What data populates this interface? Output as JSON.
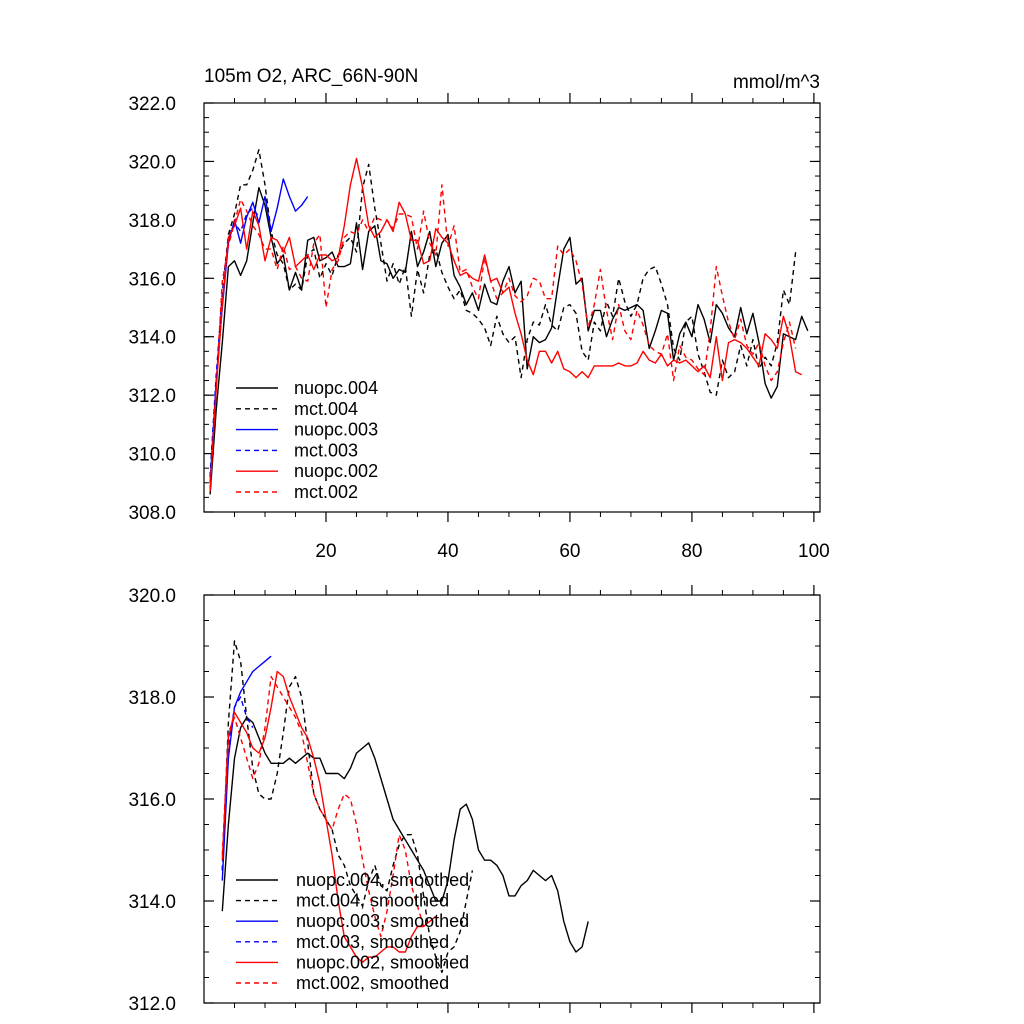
{
  "chart_data": [
    {
      "type": "line",
      "title_left": "105m O2, ARC_66N-90N",
      "title_right": "mmol/m^3",
      "xlabel": "",
      "ylabel": "",
      "xlim": [
        0,
        101
      ],
      "ylim": [
        308,
        322
      ],
      "yticks": [
        308,
        310,
        312,
        314,
        316,
        318,
        320,
        322
      ],
      "ytick_labels": [
        "308.0",
        "310.0",
        "312.0",
        "314.0",
        "316.0",
        "318.0",
        "320.0",
        "322.0"
      ],
      "xticks": [
        20,
        40,
        60,
        80,
        100
      ],
      "xtick_labels": [
        "20",
        "40",
        "60",
        "80",
        "100"
      ],
      "legend_position": "bottom-left",
      "series": [
        {
          "name": "nuopc.004",
          "color": "#000000",
          "dash": "solid",
          "x_start": 1,
          "values": [
            308.6,
            311.5,
            313.8,
            316.4,
            316.6,
            316.1,
            316.6,
            317.9,
            319.1,
            318.5,
            317.4,
            316.5,
            316.8,
            315.6,
            316.2,
            315.6,
            317.3,
            317.4,
            316.6,
            316.7,
            316.9,
            316.4,
            316.4,
            316.5,
            317.9,
            316.3,
            317.6,
            317.8,
            316.6,
            316.5,
            316.0,
            316.3,
            316.2,
            317.6,
            316.4,
            316.9,
            317.6,
            316.4,
            317.2,
            317.5,
            316.1,
            315.7,
            315.1,
            315.5,
            314.9,
            315.8,
            315.2,
            315.1,
            315.9,
            316.4,
            315.5,
            315.9,
            312.9,
            314.0,
            313.8,
            313.9,
            314.3,
            315.7,
            317.0,
            317.4,
            315.8,
            316.0,
            314.2,
            314.9,
            314.9,
            314.0,
            314.6,
            315.0,
            314.9,
            315.0,
            315.1,
            314.9,
            313.6,
            314.2,
            314.9,
            314.8,
            313.2,
            314.1,
            314.5,
            314.0,
            315.1,
            314.6,
            313.8,
            315.1,
            314.8,
            314.3,
            314.0,
            315.0,
            314.1,
            314.8,
            313.8,
            312.4,
            311.9,
            312.3,
            314.1,
            314.0,
            313.9,
            314.7,
            314.2
          ]
        },
        {
          "name": "mct.004",
          "color": "#000000",
          "dash": "dash",
          "x_start": 1,
          "values": [
            309.2,
            312.5,
            315.5,
            317.5,
            318.2,
            319.2,
            319.2,
            319.7,
            320.4,
            319.2,
            317.6,
            316.8,
            316.5,
            315.6,
            315.8,
            315.6,
            316.8,
            317.0,
            316.0,
            316.5,
            316.1,
            316.8,
            317.2,
            317.4,
            316.9,
            319.1,
            319.9,
            318.4,
            317.2,
            315.9,
            316.5,
            315.8,
            316.4,
            314.7,
            316.3,
            315.5,
            316.8,
            317.0,
            316.2,
            315.7,
            315.3,
            315.6,
            314.9,
            314.8,
            314.6,
            314.3,
            313.7,
            314.7,
            314.1,
            313.8,
            314.0,
            312.6,
            313.9,
            314.5,
            314.4,
            315.1,
            314.4,
            314.2,
            315.0,
            315.1,
            314.8,
            313.5,
            313.2,
            314.5,
            314.2,
            315.2,
            314.7,
            316.0,
            315.2,
            314.7,
            315.1,
            316.0,
            316.3,
            316.4,
            315.8,
            315.1,
            313.6,
            313.2,
            314.5,
            314.7,
            313.4,
            312.8,
            312.1,
            312.0,
            313.2,
            312.6,
            312.8,
            313.7,
            313.0,
            313.9,
            312.9,
            313.3,
            313.0,
            313.8,
            315.6,
            315.1,
            316.9
          ]
        },
        {
          "name": "nuopc.003",
          "color": "#0000ff",
          "dash": "solid",
          "x_start": 1,
          "values": [
            309.0,
            312.5,
            315.0,
            317.2,
            318.0,
            317.2,
            318.1,
            318.6,
            317.9,
            318.8,
            317.6,
            318.4,
            319.4,
            318.8,
            318.3,
            318.5,
            318.8
          ]
        },
        {
          "name": "mct.003",
          "color": "#0000ff",
          "dash": "dash",
          "x_start": 1,
          "values": [
            309.2,
            312.7,
            315.4,
            317.4,
            317.9,
            317.6,
            318.2,
            318.4,
            318.1
          ]
        },
        {
          "name": "nuopc.002",
          "color": "#ff0000",
          "dash": "solid",
          "x_start": 1,
          "values": [
            308.8,
            312.2,
            315.1,
            317.4,
            317.8,
            318.4,
            317.0,
            318.3,
            317.8,
            316.6,
            317.4,
            317.3,
            316.9,
            317.4,
            316.4,
            316.6,
            316.8,
            316.3,
            316.8,
            316.8,
            316.6,
            316.7,
            317.8,
            319.2,
            320.1,
            319.1,
            317.8,
            317.4,
            317.6,
            318.0,
            317.6,
            318.6,
            318.2,
            317.3,
            317.3,
            316.5,
            316.6,
            317.7,
            317.4,
            317.2,
            316.6,
            316.1,
            316.2,
            316.0,
            315.9,
            316.8,
            315.9,
            316.0,
            315.5,
            315.7,
            314.8,
            314.1,
            313.2,
            312.7,
            313.5,
            313.5,
            313.1,
            313.5,
            312.9,
            312.8,
            312.6,
            312.8,
            312.6,
            313.0,
            313.0,
            313.0,
            313.0,
            313.1,
            313.0,
            313.0,
            313.1,
            313.5,
            313.2,
            313.1,
            313.4,
            313.0,
            313.2,
            313.1,
            313.2,
            313.0,
            312.8,
            313.0,
            312.6,
            314.0,
            312.5,
            313.8,
            313.9,
            313.8,
            313.6,
            313.3,
            313.0,
            314.1,
            313.9,
            313.6,
            314.7,
            314.0,
            312.8,
            312.7
          ]
        },
        {
          "name": "mct.002",
          "color": "#ff0000",
          "dash": "dash",
          "x_start": 1,
          "values": [
            308.7,
            312.3,
            315.9,
            317.1,
            317.9,
            318.7,
            318.3,
            317.8,
            317.5,
            317.0,
            317.0,
            316.3,
            317.1,
            316.3,
            316.4,
            316.0,
            315.9,
            317.2,
            317.5,
            315.0,
            316.3,
            316.6,
            317.4,
            317.6,
            317.5,
            318.0,
            317.6,
            318.1,
            318.0,
            318.0,
            317.7,
            318.2,
            318.2,
            318.1,
            317.0,
            318.3,
            317.2,
            316.8,
            319.2,
            317.1,
            317.8,
            316.2,
            316.3,
            315.7,
            315.3,
            316.7,
            315.9,
            315.3,
            315.5,
            316.0,
            315.4,
            315.2,
            315.4,
            316.0,
            315.9,
            315.3,
            315.3,
            317.1,
            316.8,
            317.0,
            316.6,
            315.8,
            314.3,
            315.1,
            316.3,
            314.9,
            313.9,
            315.1,
            314.2,
            313.9,
            314.9,
            314.4,
            313.7,
            313.5,
            313.4,
            314.1,
            312.5,
            313.7,
            313.3,
            313.2,
            312.9,
            312.7,
            314.2,
            316.4,
            315.4,
            314.5,
            313.9,
            314.6,
            313.7,
            313.4,
            313.8,
            313.0,
            312.5,
            312.8,
            313.8,
            314.5,
            313.6
          ]
        }
      ]
    },
    {
      "type": "line",
      "title_left": "",
      "title_right": "",
      "xlabel": "",
      "ylabel": "",
      "xlim": [
        0,
        101
      ],
      "ylim": [
        312,
        320
      ],
      "yticks": [
        312,
        314,
        316,
        318,
        320
      ],
      "ytick_labels": [
        "312.0",
        "314.0",
        "316.0",
        "318.0",
        "320.0"
      ],
      "xticks": [
        20,
        40,
        60,
        80,
        100
      ],
      "xtick_labels": [],
      "legend_position": "bottom-left",
      "series": [
        {
          "name": "nuopc.004, smoothed",
          "color": "#000000",
          "dash": "solid",
          "x_start": 3,
          "values": [
            313.8,
            315.5,
            316.8,
            317.4,
            317.6,
            317.5,
            317.2,
            316.9,
            316.7,
            316.7,
            316.7,
            316.8,
            316.7,
            316.8,
            316.9,
            316.8,
            316.8,
            316.5,
            316.5,
            316.5,
            316.4,
            316.6,
            316.9,
            317.0,
            317.1,
            316.8,
            316.4,
            316.0,
            315.6,
            315.4,
            315.2,
            315.0,
            314.8,
            314.6,
            314.3,
            314.0,
            314.0,
            314.4,
            315.2,
            315.8,
            315.9,
            315.6,
            315.0,
            314.8,
            314.8,
            314.7,
            314.5,
            314.1,
            314.1,
            314.3,
            314.4,
            314.6,
            314.5,
            314.4,
            314.5,
            314.2,
            313.6,
            313.2,
            313.0,
            313.1,
            313.6
          ]
        },
        {
          "name": "mct.004, smoothed",
          "color": "#000000",
          "dash": "dash",
          "x_start": 3,
          "values": [
            314.6,
            317.5,
            319.1,
            318.7,
            317.6,
            316.6,
            316.1,
            316.0,
            316.0,
            316.5,
            317.3,
            318.2,
            318.4,
            318.0,
            317.1,
            316.1,
            315.8,
            315.6,
            315.4,
            314.9,
            314.7,
            314.3,
            314.1,
            313.9,
            314.4,
            314.7,
            314.3,
            314.2,
            314.7,
            315.1,
            315.3,
            315.3,
            314.9,
            314.1,
            313.3,
            312.9,
            312.6,
            313.0,
            313.1,
            313.4,
            314.0,
            314.6
          ]
        },
        {
          "name": "nuopc.003, smoothed",
          "color": "#0000ff",
          "dash": "solid",
          "x_start": 3,
          "values": [
            314.4,
            316.8,
            317.8,
            318.1,
            318.3,
            318.5,
            318.6,
            318.7,
            318.8
          ]
        },
        {
          "name": "mct.003, smoothed",
          "color": "#0000ff",
          "dash": "dash",
          "x_start": 3,
          "values": [
            314.6,
            317.0,
            317.8,
            318.0,
            317.6,
            317.4
          ]
        },
        {
          "name": "nuopc.002, smoothed",
          "color": "#ff0000",
          "dash": "solid",
          "x_start": 3,
          "values": [
            314.8,
            317.2,
            317.7,
            317.5,
            317.3,
            317.0,
            316.9,
            317.2,
            317.8,
            318.5,
            318.4,
            318.0,
            317.7,
            317.4,
            317.2,
            316.8,
            316.3,
            315.6,
            314.9,
            314.0,
            313.3,
            313.1,
            312.9,
            312.8,
            312.9,
            312.9,
            313.0,
            313.1,
            313.1,
            313.0,
            313.0,
            313.3,
            313.5,
            313.5,
            313.6,
            313.7
          ]
        },
        {
          "name": "mct.002, smoothed",
          "color": "#ff0000",
          "dash": "dash",
          "x_start": 3,
          "values": [
            314.9,
            317.3,
            317.6,
            317.2,
            316.8,
            316.4,
            316.7,
            317.4,
            318.4,
            318.2,
            318.0,
            317.8,
            317.6,
            317.3,
            316.7,
            316.1,
            315.8,
            315.6,
            315.4,
            315.8,
            316.1,
            316.0,
            315.5,
            314.8,
            314.2,
            313.7,
            313.3,
            313.8,
            314.5,
            315.3,
            315.0,
            314.3,
            313.9,
            313.5
          ]
        }
      ]
    }
  ]
}
